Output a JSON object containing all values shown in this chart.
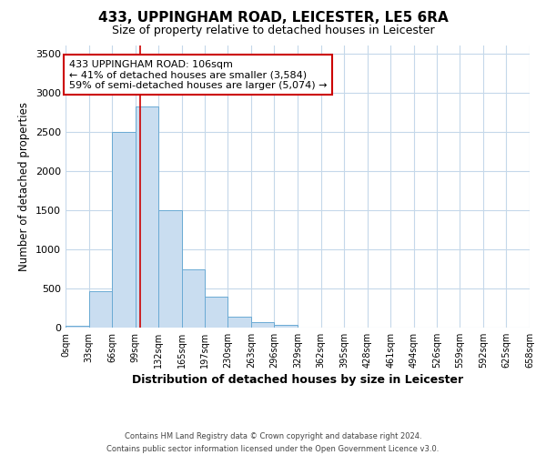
{
  "title": "433, UPPINGHAM ROAD, LEICESTER, LE5 6RA",
  "subtitle": "Size of property relative to detached houses in Leicester",
  "xlabel": "Distribution of detached houses by size in Leicester",
  "ylabel": "Number of detached properties",
  "bar_color": "#c9ddf0",
  "bar_edge_color": "#6aaad4",
  "background_color": "#ffffff",
  "grid_color": "#c5d8ea",
  "vline_x": 106,
  "vline_color": "#cc0000",
  "annotation_line1": "433 UPPINGHAM ROAD: 106sqm",
  "annotation_line2": "← 41% of detached houses are smaller (3,584)",
  "annotation_line3": "59% of semi-detached houses are larger (5,074) →",
  "annotation_box_color": "white",
  "annotation_box_edge": "#cc0000",
  "footer_line1": "Contains HM Land Registry data © Crown copyright and database right 2024.",
  "footer_line2": "Contains public sector information licensed under the Open Government Licence v3.0.",
  "bin_edges": [
    0,
    33,
    66,
    99,
    132,
    165,
    197,
    230,
    263,
    296,
    329,
    362,
    395,
    428,
    461,
    494,
    526,
    559,
    592,
    625,
    658
  ],
  "bin_counts": [
    28,
    465,
    2500,
    2820,
    1500,
    745,
    395,
    140,
    72,
    38,
    5,
    0,
    0,
    0,
    0,
    0,
    0,
    0,
    0,
    0
  ],
  "ylim": [
    0,
    3600
  ],
  "yticks": [
    0,
    500,
    1000,
    1500,
    2000,
    2500,
    3000,
    3500
  ],
  "figsize": [
    6.0,
    5.0
  ],
  "dpi": 100
}
